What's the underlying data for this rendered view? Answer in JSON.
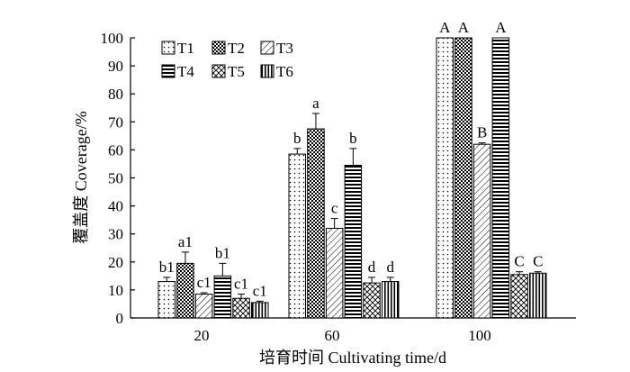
{
  "chart_data": {
    "type": "bar",
    "title": "",
    "xlabel": "培育时间 Cultivating time/d",
    "ylabel": "覆盖度 Coverage/%",
    "ylim": [
      0,
      100
    ],
    "yticks": [
      0,
      10,
      20,
      30,
      40,
      50,
      60,
      70,
      80,
      90,
      100
    ],
    "categories": [
      "20",
      "60",
      "100"
    ],
    "legend_position": "top-left",
    "series": [
      {
        "name": "T1",
        "pattern": "dots",
        "values": [
          13,
          58.5,
          100
        ],
        "errors": [
          1.5,
          2,
          0
        ],
        "labels": [
          "b1",
          "b",
          "A"
        ]
      },
      {
        "name": "T2",
        "pattern": "checker",
        "values": [
          19.5,
          67.5,
          100
        ],
        "errors": [
          4,
          5.5,
          0
        ],
        "labels": [
          "a1",
          "a",
          "A"
        ]
      },
      {
        "name": "T3",
        "pattern": "diagonal",
        "values": [
          8.5,
          32,
          62
        ],
        "errors": [
          0.5,
          3.5,
          0.5
        ],
        "labels": [
          "c1",
          "c",
          "B"
        ]
      },
      {
        "name": "T4",
        "pattern": "hlines",
        "values": [
          15,
          54.5,
          100
        ],
        "errors": [
          4.5,
          6,
          0
        ],
        "labels": [
          "b1",
          "b",
          "A"
        ]
      },
      {
        "name": "T5",
        "pattern": "crosshatch",
        "values": [
          7,
          12.5,
          15.5
        ],
        "errors": [
          1.5,
          2,
          1
        ],
        "labels": [
          "c1",
          "d",
          "C"
        ]
      },
      {
        "name": "T6",
        "pattern": "vlines",
        "values": [
          5.5,
          13,
          16
        ],
        "errors": [
          0.5,
          1.5,
          0.5
        ],
        "labels": [
          "c1",
          "d",
          "C"
        ]
      }
    ]
  }
}
